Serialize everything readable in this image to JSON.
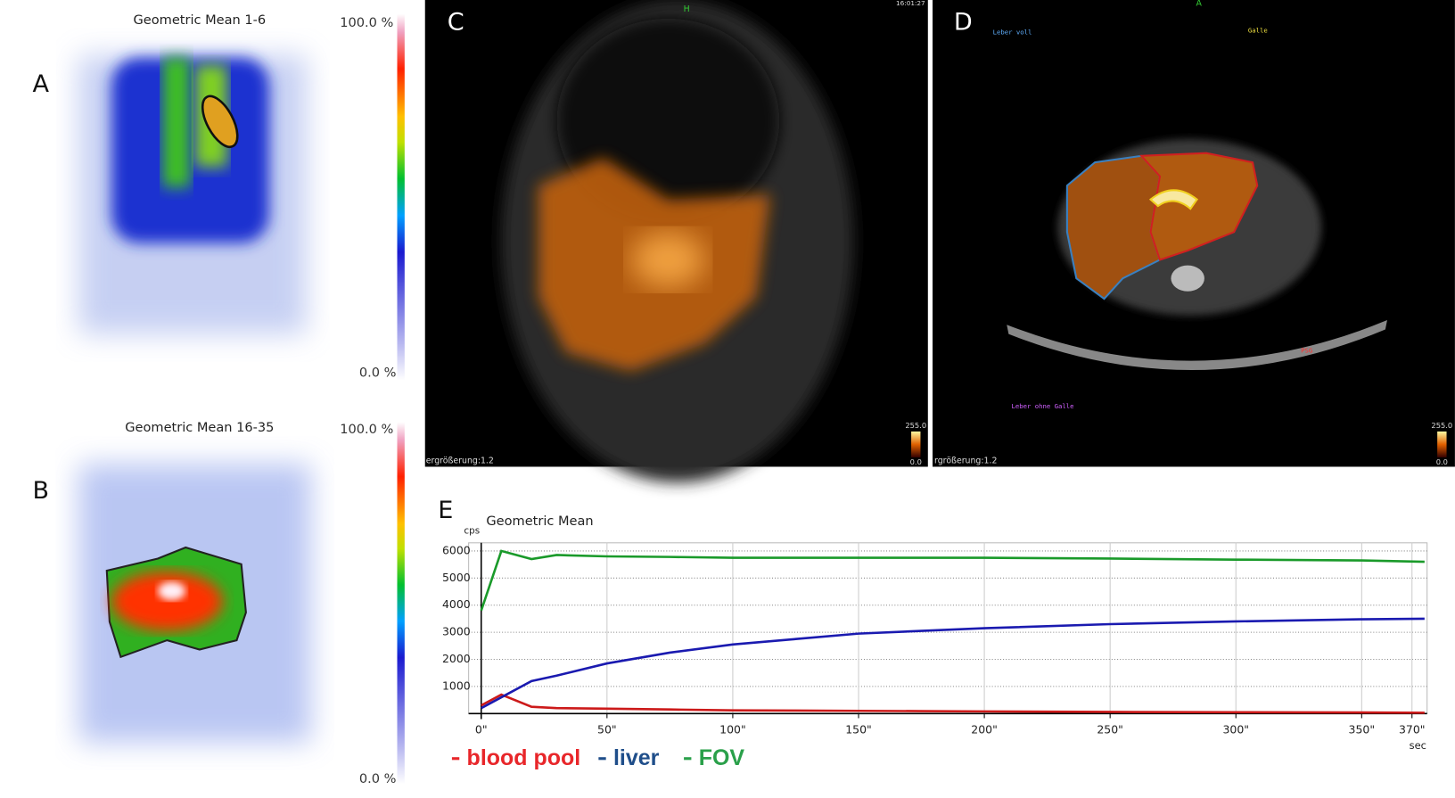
{
  "panels": {
    "A": {
      "label": "A",
      "title": "Geometric Mean 1-6",
      "scale_max": "100.0 %",
      "scale_min": "0.0 %"
    },
    "B": {
      "label": "B",
      "title": "Geometric Mean 16-35",
      "scale_max": "100.0 %",
      "scale_min": "0.0 %"
    },
    "C": {
      "label": "C",
      "orientation": "H",
      "time": "16:01:27",
      "zoom": "ergrößerung:1.2",
      "scale_max": "255.0",
      "scale_min": "0.0"
    },
    "D": {
      "label": "D",
      "orientation": "A",
      "zoom": "rgrößerung:1.2",
      "scale_max": "255.0",
      "scale_min": "0.0",
      "roi_labels": [
        "Leber voll",
        "Galle",
        "Leber ohne Galle",
        "PSG"
      ]
    }
  },
  "chart_data": {
    "type": "line",
    "label": "E",
    "title": "Geometric Mean",
    "ylabel": "cps",
    "xlabel": "sec",
    "x": [
      0,
      8,
      20,
      30,
      50,
      75,
      100,
      125,
      150,
      175,
      200,
      250,
      300,
      350,
      375
    ],
    "series": [
      {
        "name": "blood pool",
        "color": "#cc1a1a",
        "legend_color": "#e8262a",
        "values": [
          300,
          700,
          250,
          200,
          180,
          150,
          120,
          110,
          100,
          90,
          80,
          60,
          50,
          40,
          30
        ]
      },
      {
        "name": "liver",
        "color": "#1a1ab0",
        "legend_color": "#1f4e8a",
        "values": [
          200,
          600,
          1200,
          1400,
          1850,
          2250,
          2550,
          2750,
          2950,
          3050,
          3150,
          3300,
          3400,
          3480,
          3500
        ]
      },
      {
        "name": "FOV",
        "color": "#1a9a2a",
        "legend_color": "#2aa04a",
        "values": [
          3800,
          6000,
          5700,
          5850,
          5800,
          5780,
          5750,
          5750,
          5750,
          5750,
          5750,
          5720,
          5680,
          5650,
          5600
        ]
      }
    ],
    "xlim": [
      -5,
      376
    ],
    "ylim": [
      0,
      6300
    ],
    "xticks": [
      {
        "value": 0,
        "label": "0\""
      },
      {
        "value": 50,
        "label": "50\""
      },
      {
        "value": 100,
        "label": "100\""
      },
      {
        "value": 150,
        "label": "150\""
      },
      {
        "value": 200,
        "label": "200\""
      },
      {
        "value": 250,
        "label": "250\""
      },
      {
        "value": 300,
        "label": "300\""
      },
      {
        "value": 350,
        "label": "350\""
      },
      {
        "value": 370,
        "label": "370\""
      }
    ],
    "yticks": [
      1000,
      2000,
      3000,
      4000,
      5000,
      6000
    ],
    "grid": true
  }
}
